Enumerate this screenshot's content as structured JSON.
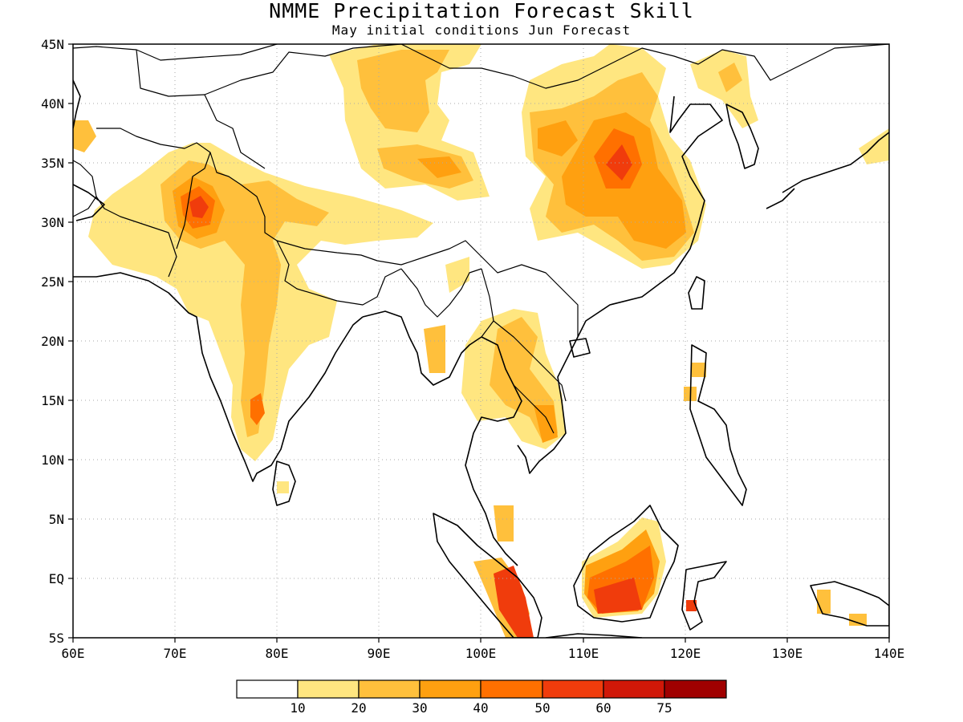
{
  "title": "NMME Precipitation Forecast Skill",
  "subtitle": "May initial conditions  Jun Forecast",
  "map": {
    "lon_range": [
      60,
      140
    ],
    "lat_range": [
      -5,
      45
    ],
    "lon_labels": [
      "60E",
      "70E",
      "80E",
      "90E",
      "100E",
      "110E",
      "120E",
      "130E",
      "140E"
    ],
    "lat_labels": [
      "45N",
      "40N",
      "35N",
      "30N",
      "25N",
      "20N",
      "15N",
      "10N",
      "5N",
      "EQ",
      "5S"
    ],
    "grid": "dotted"
  },
  "legend": {
    "tick_labels": [
      "10",
      "20",
      "30",
      "40",
      "50",
      "60",
      "75"
    ],
    "colors": [
      "#ffffff",
      "#ffe680",
      "#ffc03c",
      "#ffa010",
      "#ff7000",
      "#f03c0c",
      "#d01808",
      "#a00000"
    ]
  }
}
